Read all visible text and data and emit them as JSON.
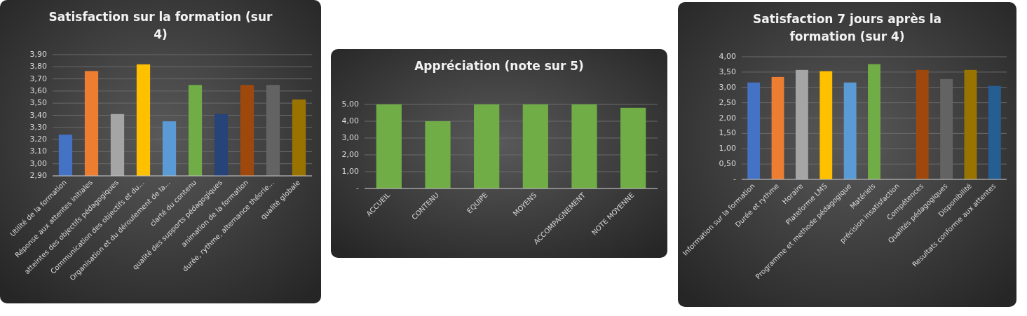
{
  "chart_data": [
    {
      "type": "bar",
      "title": "Satisfaction sur la formation (sur 4)",
      "categories": [
        "Utilité de la formation",
        "Réponse aux attentes initiales",
        "atteintes des objectifs pédagogiques",
        "Communication des objectifs et du…",
        "Organisation et du déroulement de la…",
        "clarté du contenu",
        "qualité des supports pédagogiques",
        "animation de la formation",
        "durée, rythme, alternance théorie…",
        "qualité globale"
      ],
      "values": [
        3.24,
        3.765,
        3.41,
        3.82,
        3.35,
        3.65,
        3.41,
        3.65,
        3.65,
        3.53
      ],
      "colors": [
        "#4472c4",
        "#ed7d31",
        "#a5a5a5",
        "#ffc000",
        "#5b9bd5",
        "#70ad47",
        "#264478",
        "#9e480e",
        "#636363",
        "#997300"
      ],
      "ylim": [
        2.9,
        3.9
      ],
      "yticks": [
        {
          "value": 2.9,
          "label": "2,90"
        },
        {
          "value": 3.0,
          "label": "3,00"
        },
        {
          "value": 3.1,
          "label": "3,10"
        },
        {
          "value": 3.2,
          "label": "3,20"
        },
        {
          "value": 3.3,
          "label": "3,30"
        },
        {
          "value": 3.4,
          "label": "3,40"
        },
        {
          "value": 3.5,
          "label": "3,50"
        },
        {
          "value": 3.6,
          "label": "3,60"
        },
        {
          "value": 3.7,
          "label": "3,70"
        },
        {
          "value": 3.8,
          "label": "3,80"
        },
        {
          "value": 3.9,
          "label": "3,90"
        }
      ],
      "grid": "y"
    },
    {
      "type": "bar",
      "title": "Appréciation (note sur 5)",
      "categories": [
        "ACCUEIL",
        "CONTENU",
        "EQUIPE",
        "MOYENS",
        "ACCOMPAGNEMENT",
        "NOTE MOYENNE"
      ],
      "values": [
        5,
        4,
        5,
        5,
        5,
        4.8
      ],
      "color": "#70ad47",
      "ylim": [
        0,
        5
      ],
      "yticks": [
        {
          "value": 0,
          "label": "-"
        },
        {
          "value": 1,
          "label": "1,00"
        },
        {
          "value": 2,
          "label": "2,00"
        },
        {
          "value": 3,
          "label": "3,00"
        },
        {
          "value": 4,
          "label": "4,00"
        },
        {
          "value": 5,
          "label": "5,00"
        }
      ],
      "grid": "y"
    },
    {
      "type": "bar",
      "title": "Satisfaction 7 jours après la formation (sur 4)",
      "categories": [
        "Information sur la formation",
        "Durée et rythme",
        "Horaire",
        "Plateforme LMS",
        "Programme et methode pédagogique",
        "Matériels",
        "précision insatisfaction",
        "Compétences",
        "Qualités pédagogiques",
        "Disponibilité",
        "Resultats conforme aux attentes"
      ],
      "values": [
        3.16,
        3.34,
        3.57,
        3.53,
        3.16,
        3.76,
        null,
        3.57,
        3.27,
        3.57,
        3.05
      ],
      "colors": [
        "#4472c4",
        "#ed7d31",
        "#a5a5a5",
        "#ffc000",
        "#5b9bd5",
        "#70ad47",
        null,
        "#9e480e",
        "#636363",
        "#997300",
        "#255e91"
      ],
      "ylim": [
        0,
        4
      ],
      "yticks": [
        {
          "value": 0,
          "label": "-"
        },
        {
          "value": 0.5,
          "label": "0,50"
        },
        {
          "value": 1,
          "label": "1,00"
        },
        {
          "value": 1.5,
          "label": "1,50"
        },
        {
          "value": 2,
          "label": "2,00"
        },
        {
          "value": 2.5,
          "label": "2,50"
        },
        {
          "value": 3,
          "label": "3,00"
        },
        {
          "value": 3.5,
          "label": "3,50"
        },
        {
          "value": 4,
          "label": "4,00"
        }
      ],
      "grid": "y"
    }
  ]
}
